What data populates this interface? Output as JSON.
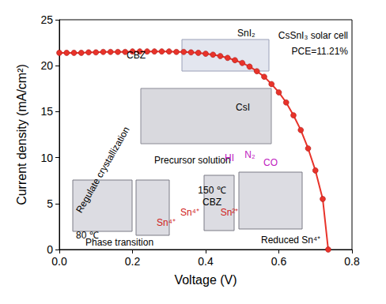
{
  "chart_data": {
    "type": "line",
    "xlabel": "Voltage (V)",
    "ylabel": "Current density (mA/cm²)",
    "x": [
      0,
      0.02,
      0.04,
      0.06,
      0.08,
      0.1,
      0.12,
      0.14,
      0.16,
      0.18,
      0.2,
      0.22,
      0.24,
      0.26,
      0.28,
      0.3,
      0.32,
      0.34,
      0.36,
      0.38,
      0.4,
      0.42,
      0.44,
      0.46,
      0.48,
      0.5,
      0.52,
      0.54,
      0.56,
      0.58,
      0.6,
      0.62,
      0.64,
      0.66,
      0.68,
      0.7,
      0.72,
      0.735
    ],
    "values": [
      21.4,
      21.4,
      21.4,
      21.4,
      21.45,
      21.45,
      21.5,
      21.5,
      21.5,
      21.5,
      21.55,
      21.55,
      21.55,
      21.55,
      21.55,
      21.55,
      21.5,
      21.5,
      21.45,
      21.4,
      21.3,
      21.2,
      21.05,
      20.85,
      20.6,
      20.3,
      19.9,
      19.4,
      18.8,
      18.0,
      17.1,
      16.0,
      14.6,
      13.0,
      11.0,
      8.6,
      5.5,
      0
    ],
    "color": "#e8332a",
    "marker": "circle",
    "xlim": [
      0,
      0.8
    ],
    "xticks": [
      {
        "value": 0,
        "label": "0.0"
      },
      0.2,
      0.4,
      0.6,
      0.8
    ],
    "ylim": [
      0,
      25
    ],
    "yticks": [
      0,
      5,
      10,
      15,
      20,
      25
    ],
    "annotations": [
      "CsSnI₃ solar cell",
      "PCE=11.21%",
      "SnI₂",
      "CBZ",
      "CsI",
      "Precursor solution",
      "Regulate crystallization",
      "80 ℃",
      "Phase transition",
      "150 ℃",
      "CBZ",
      "Sn⁴⁺",
      "Sn²⁺",
      "HI",
      "N₂",
      "CO",
      "Reduced Sn⁴⁺",
      "Sn⁴⁺"
    ]
  }
}
